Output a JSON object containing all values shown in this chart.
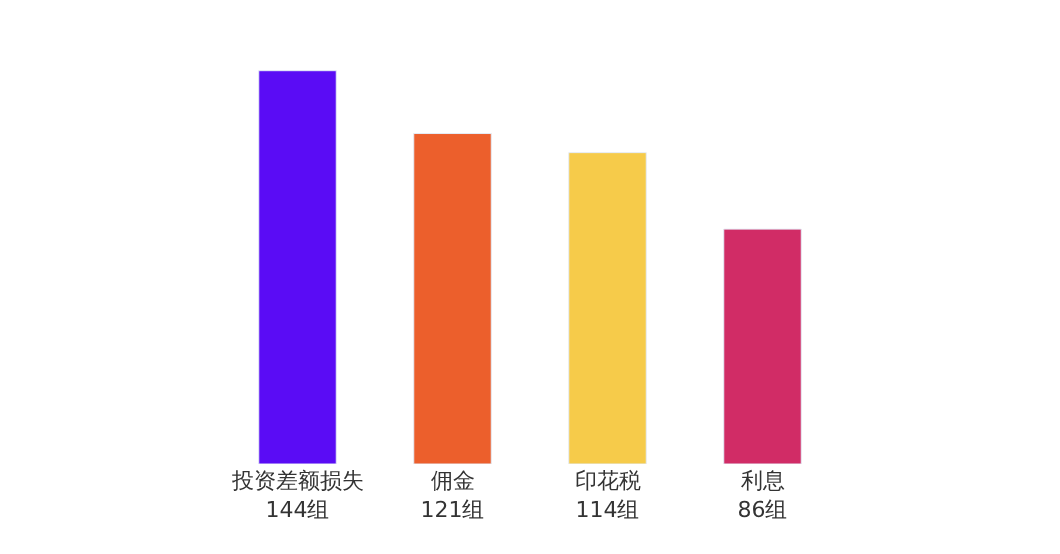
{
  "chart_data": {
    "type": "bar",
    "categories": [
      "投资差额损失",
      "佣金",
      "印花税",
      "利息"
    ],
    "values": [
      144,
      121,
      114,
      86
    ],
    "colors": [
      "#5a0cf5",
      "#ec5f2c",
      "#f6cb4a",
      "#d12c66"
    ],
    "value_labels": [
      "144组",
      "121组",
      "114组",
      "86组"
    ]
  }
}
